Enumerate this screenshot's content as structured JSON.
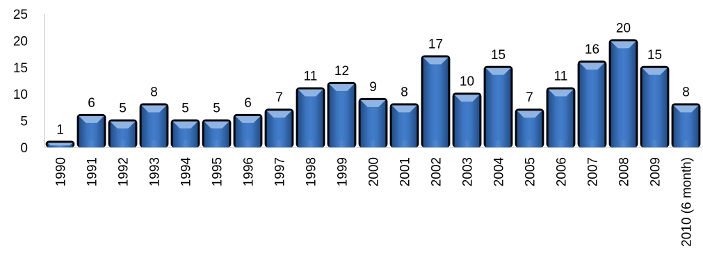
{
  "chart_data": {
    "type": "bar",
    "title": "",
    "xlabel": "",
    "ylabel": "",
    "categories": [
      "1990",
      "1991",
      "1992",
      "1993",
      "1994",
      "1995",
      "1996",
      "1997",
      "1998",
      "1999",
      "2000",
      "2001",
      "2002",
      "2003",
      "2004",
      "2005",
      "2006",
      "2007",
      "2008",
      "2009",
      "2010 (6 month)"
    ],
    "values": [
      1,
      6,
      5,
      8,
      5,
      5,
      6,
      7,
      11,
      12,
      9,
      8,
      17,
      10,
      15,
      7,
      11,
      16,
      20,
      15,
      8
    ],
    "ylim": [
      0,
      25
    ],
    "yticks": [
      0,
      5,
      10,
      15,
      20,
      25
    ],
    "grid": false,
    "legend": "none",
    "data_labels": true,
    "colors": {
      "bar_light": "#8fb4e3",
      "bar_main": "#3a75c4",
      "bar_dark": "#1f4e8c",
      "bar_shadow": "#000000"
    }
  }
}
